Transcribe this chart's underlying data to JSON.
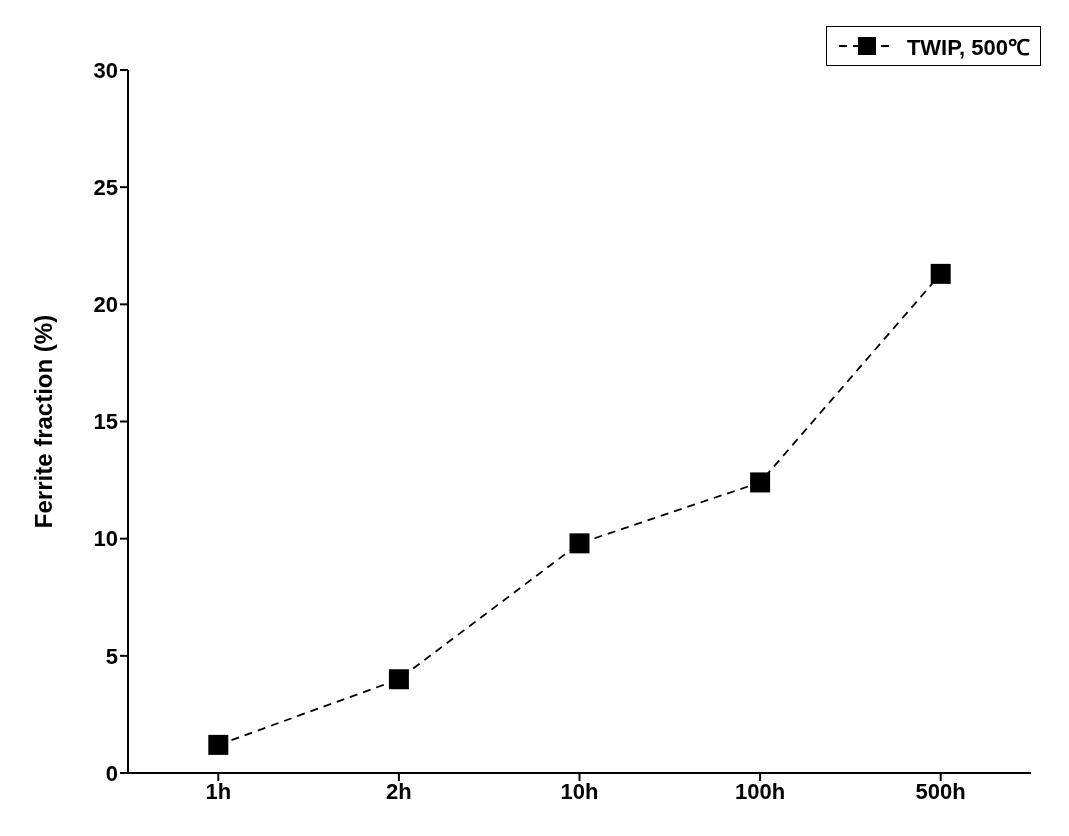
{
  "chart_data": {
    "type": "line",
    "ylabel": "Ferrite fraction (%)",
    "categories": [
      "1h",
      "2h",
      "10h",
      "100h",
      "500h"
    ],
    "series": [
      {
        "name": "TWIP, 500℃",
        "color": "#000000",
        "values": [
          1.2,
          4.0,
          9.8,
          12.4,
          21.3
        ]
      }
    ],
    "ylim": [
      0,
      30
    ],
    "yticks": [
      0,
      5,
      10,
      15,
      20,
      25,
      30
    ],
    "grid": false,
    "legend": "top right",
    "marker": "square",
    "line_style": "dashed"
  }
}
